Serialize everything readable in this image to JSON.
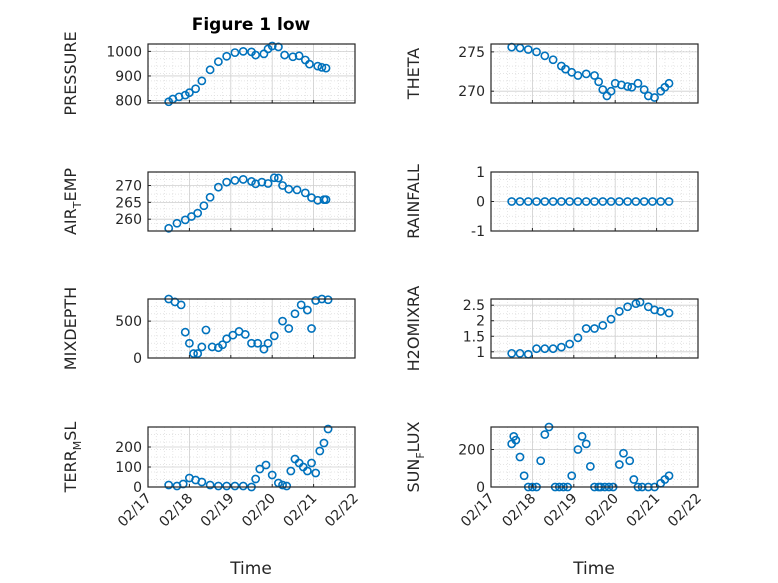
{
  "chart_data": {
    "type": "scatter",
    "title": "Figure 1 low",
    "xlabel": "Time",
    "x_tick_labels": [
      "02/17",
      "02/18",
      "02/19",
      "02/20",
      "02/21",
      "02/22"
    ],
    "x_range_days": [
      17,
      22
    ],
    "marker": "open-circle",
    "marker_color": "#0072BD",
    "grid": true,
    "minor_grid": true,
    "subplots": [
      {
        "id": "pressure",
        "ylabel": "PRESSURE",
        "ylim": [
          790,
          1030
        ],
        "yticks": [
          800,
          900,
          1000
        ],
        "ytick_labels": [
          "800",
          "900",
          "1000"
        ],
        "x": [
          17.5,
          17.6,
          17.75,
          17.9,
          18.0,
          18.15,
          18.3,
          18.5,
          18.7,
          18.9,
          19.1,
          19.3,
          19.5,
          19.6,
          19.8,
          19.9,
          20.0,
          20.15,
          20.3,
          20.5,
          20.65,
          20.8,
          20.9,
          21.1,
          21.2,
          21.3
        ],
        "y": [
          795,
          806,
          815,
          822,
          832,
          848,
          880,
          925,
          958,
          980,
          995,
          1000,
          998,
          985,
          990,
          1010,
          1022,
          1018,
          985,
          978,
          982,
          965,
          948,
          940,
          935,
          932
        ]
      },
      {
        "id": "theta",
        "ylabel": "THETA",
        "ylim": [
          268.5,
          276
        ],
        "yticks": [
          270,
          275
        ],
        "ytick_labels": [
          "270",
          "275"
        ],
        "x": [
          17.5,
          17.7,
          17.9,
          18.1,
          18.3,
          18.5,
          18.7,
          18.8,
          18.95,
          19.1,
          19.3,
          19.5,
          19.6,
          19.7,
          19.8,
          19.9,
          20.0,
          20.15,
          20.3,
          20.4,
          20.55,
          20.7,
          20.8,
          20.95,
          21.1,
          21.2,
          21.3
        ],
        "y": [
          275.6,
          275.5,
          275.3,
          275.0,
          274.5,
          274.0,
          273.2,
          272.8,
          272.4,
          272.0,
          272.2,
          272.0,
          271.2,
          270.2,
          269.4,
          270.0,
          271.0,
          270.8,
          270.6,
          270.5,
          271.0,
          270.2,
          269.4,
          269.2,
          270.0,
          270.5,
          271.0
        ]
      },
      {
        "id": "air_temp",
        "ylabel": "AIR",
        "ylabel_sub": "T",
        "ylabel_rest": "EMP",
        "ylim": [
          256.5,
          274
        ],
        "yticks": [
          260,
          265,
          270
        ],
        "ytick_labels": [
          "260",
          "265",
          "270"
        ],
        "x": [
          17.5,
          17.7,
          17.9,
          18.05,
          18.2,
          18.35,
          18.5,
          18.7,
          18.9,
          19.1,
          19.3,
          19.5,
          19.6,
          19.75,
          19.9,
          20.05,
          20.15,
          20.25,
          20.4,
          20.6,
          20.8,
          20.95,
          21.1,
          21.25,
          21.3
        ],
        "y": [
          257.3,
          258.8,
          259.8,
          260.8,
          261.8,
          264.0,
          266.5,
          269.5,
          271.0,
          271.5,
          271.8,
          271.2,
          270.5,
          271.0,
          270.6,
          272.3,
          272.2,
          270.0,
          268.9,
          268.7,
          267.8,
          266.4,
          265.6,
          265.8,
          265.8
        ]
      },
      {
        "id": "rainfall",
        "ylabel": "RAINFALL",
        "ylim": [
          -1,
          1
        ],
        "yticks": [
          -1,
          0,
          1
        ],
        "ytick_labels": [
          "-1",
          "0",
          "1"
        ],
        "x": [
          17.5,
          17.7,
          17.9,
          18.1,
          18.3,
          18.5,
          18.7,
          18.9,
          19.1,
          19.3,
          19.5,
          19.7,
          19.9,
          20.1,
          20.3,
          20.5,
          20.7,
          20.9,
          21.1,
          21.3
        ],
        "y": [
          0,
          0,
          0,
          0,
          0,
          0,
          0,
          0,
          0,
          0,
          0,
          0,
          0,
          0,
          0,
          0,
          0,
          0,
          0,
          0
        ]
      },
      {
        "id": "mixdepth",
        "ylabel": "MIXDEPTH",
        "ylim": [
          0,
          800
        ],
        "yticks": [
          0,
          500
        ],
        "ytick_labels": [
          "0",
          "500"
        ],
        "x": [
          17.5,
          17.65,
          17.8,
          17.9,
          18.0,
          18.1,
          18.2,
          18.3,
          18.4,
          18.55,
          18.7,
          18.8,
          18.9,
          19.05,
          19.2,
          19.35,
          19.5,
          19.65,
          19.8,
          19.9,
          20.05,
          20.25,
          20.4,
          20.55,
          20.7,
          20.85,
          20.95,
          21.05,
          21.2,
          21.35
        ],
        "y": [
          800,
          760,
          720,
          350,
          200,
          60,
          60,
          150,
          380,
          150,
          140,
          180,
          260,
          310,
          360,
          320,
          200,
          200,
          120,
          200,
          300,
          500,
          400,
          600,
          720,
          650,
          400,
          780,
          800,
          790
        ]
      },
      {
        "id": "h2omixra",
        "ylabel": "H2OMIXRA",
        "ylim": [
          0.8,
          2.7
        ],
        "yticks": [
          1,
          1.5,
          2,
          2.5
        ],
        "ytick_labels": [
          "1",
          "1.5",
          "2",
          "2.5"
        ],
        "x": [
          17.5,
          17.7,
          17.9,
          18.1,
          18.3,
          18.5,
          18.7,
          18.9,
          19.1,
          19.3,
          19.5,
          19.7,
          19.9,
          20.1,
          20.3,
          20.5,
          20.6,
          20.8,
          20.95,
          21.1,
          21.3
        ],
        "y": [
          0.95,
          0.95,
          0.92,
          1.1,
          1.1,
          1.1,
          1.15,
          1.25,
          1.45,
          1.75,
          1.75,
          1.85,
          2.05,
          2.3,
          2.45,
          2.55,
          2.6,
          2.45,
          2.35,
          2.3,
          2.25
        ]
      },
      {
        "id": "terr_msl",
        "ylabel": "TERR",
        "ylabel_sub": "M",
        "ylabel_rest": "SL",
        "ylim": [
          0,
          300
        ],
        "yticks": [
          0,
          100,
          200
        ],
        "ytick_labels": [
          "0",
          "100",
          "200"
        ],
        "x": [
          17.5,
          17.7,
          17.85,
          18.0,
          18.15,
          18.3,
          18.5,
          18.7,
          18.9,
          19.1,
          19.3,
          19.5,
          19.6,
          19.7,
          19.85,
          20.0,
          20.15,
          20.25,
          20.35,
          20.45,
          20.55,
          20.65,
          20.75,
          20.85,
          20.95,
          21.05,
          21.15,
          21.25,
          21.35
        ],
        "y": [
          10,
          5,
          15,
          45,
          35,
          25,
          10,
          5,
          5,
          5,
          5,
          0,
          40,
          90,
          110,
          60,
          20,
          10,
          5,
          80,
          140,
          120,
          100,
          80,
          120,
          70,
          180,
          220,
          290
        ]
      },
      {
        "id": "sun_flux",
        "ylabel": "SUN",
        "ylabel_sub": "F",
        "ylabel_rest": "LUX",
        "ylim": [
          0,
          320
        ],
        "yticks": [
          0,
          200
        ],
        "ytick_labels": [
          "0",
          "200"
        ],
        "x": [
          17.5,
          17.55,
          17.6,
          17.7,
          17.8,
          17.9,
          18.0,
          18.1,
          18.2,
          18.3,
          18.4,
          18.55,
          18.65,
          18.75,
          18.85,
          18.95,
          19.1,
          19.2,
          19.3,
          19.4,
          19.5,
          19.6,
          19.65,
          19.75,
          19.85,
          19.95,
          20.1,
          20.2,
          20.35,
          20.45,
          20.55,
          20.65,
          20.8,
          20.95,
          21.1,
          21.2,
          21.3
        ],
        "y": [
          230,
          270,
          250,
          160,
          60,
          0,
          0,
          0,
          140,
          280,
          320,
          0,
          0,
          0,
          0,
          60,
          200,
          270,
          230,
          110,
          0,
          0,
          0,
          0,
          0,
          0,
          120,
          180,
          140,
          40,
          0,
          0,
          0,
          0,
          20,
          40,
          60
        ]
      }
    ]
  }
}
